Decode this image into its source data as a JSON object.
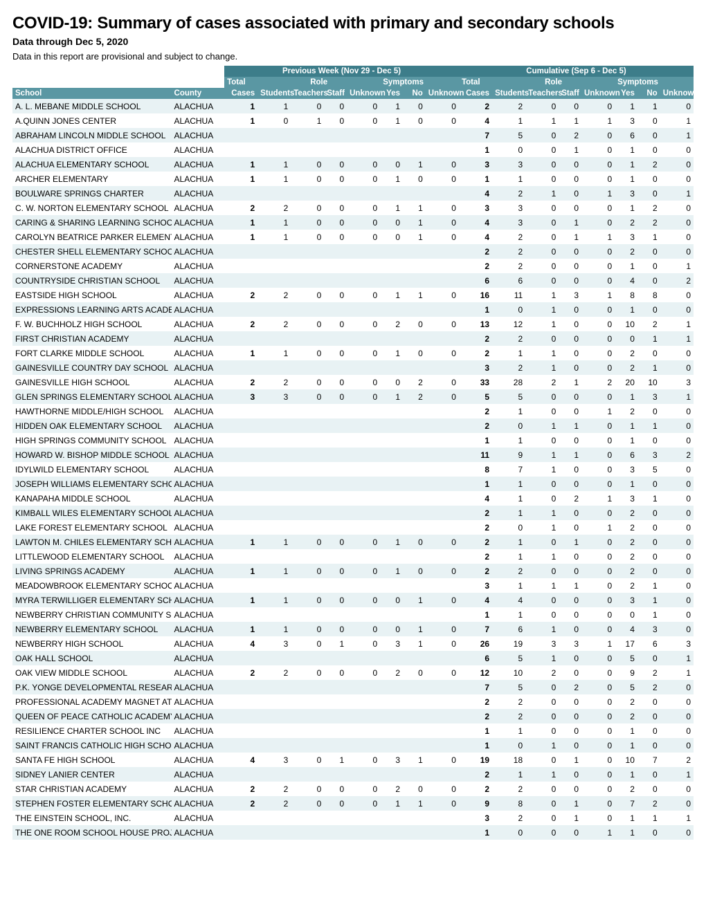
{
  "title": "COVID-19: Summary of cases associated with primary and secondary schools",
  "subtitle": "Data through Dec 5, 2020",
  "note": "Data in this report are provisional and subject to change.",
  "group_headers": {
    "prev": "Previous Week (Nov 29 - Dec 5)",
    "cum": "Cumulative (Sep 6 - Dec 5)"
  },
  "sub_headers": {
    "total": "Total",
    "role": "Role",
    "symptoms": "Symptoms"
  },
  "columns": {
    "school": "School",
    "county": "County",
    "cases": "Cases",
    "students": "Students",
    "teachers": "Teachers",
    "staff": "Staff",
    "unknown": "Unknown",
    "yes": "Yes",
    "no": "No"
  },
  "colors": {
    "header_group_bg": "#3d7d8a",
    "header_sub_bg": "#5a97a3",
    "header_fg": "#ffffff",
    "row_odd_bg": "#e8f2f4",
    "row_even_bg": "#ffffff"
  },
  "rows": [
    {
      "school": "A. L. MEBANE MIDDLE SCHOOL",
      "county": "ALACHUA",
      "p": [
        1,
        1,
        0,
        0,
        0,
        1,
        0,
        0
      ],
      "c": [
        2,
        2,
        0,
        0,
        0,
        1,
        1,
        0
      ]
    },
    {
      "school": "A.QUINN JONES CENTER",
      "county": "ALACHUA",
      "p": [
        1,
        0,
        1,
        0,
        0,
        1,
        0,
        0
      ],
      "c": [
        4,
        1,
        1,
        1,
        1,
        3,
        0,
        1
      ]
    },
    {
      "school": "ABRAHAM LINCOLN MIDDLE SCHOOL",
      "county": "ALACHUA",
      "p": null,
      "c": [
        7,
        5,
        0,
        2,
        0,
        6,
        0,
        1
      ]
    },
    {
      "school": "ALACHUA DISTRICT OFFICE",
      "county": "ALACHUA",
      "p": null,
      "c": [
        1,
        0,
        0,
        1,
        0,
        1,
        0,
        0
      ]
    },
    {
      "school": "ALACHUA ELEMENTARY SCHOOL",
      "county": "ALACHUA",
      "p": [
        1,
        1,
        0,
        0,
        0,
        0,
        1,
        0
      ],
      "c": [
        3,
        3,
        0,
        0,
        0,
        1,
        2,
        0
      ]
    },
    {
      "school": "ARCHER ELEMENTARY",
      "county": "ALACHUA",
      "p": [
        1,
        1,
        0,
        0,
        0,
        1,
        0,
        0
      ],
      "c": [
        1,
        1,
        0,
        0,
        0,
        1,
        0,
        0
      ]
    },
    {
      "school": "BOULWARE SPRINGS CHARTER",
      "county": "ALACHUA",
      "p": null,
      "c": [
        4,
        2,
        1,
        0,
        1,
        3,
        0,
        1
      ]
    },
    {
      "school": "C. W. NORTON ELEMENTARY SCHOOL",
      "county": "ALACHUA",
      "p": [
        2,
        2,
        0,
        0,
        0,
        1,
        1,
        0
      ],
      "c": [
        3,
        3,
        0,
        0,
        0,
        1,
        2,
        0
      ]
    },
    {
      "school": "CARING & SHARING LEARNING SCHOOL",
      "county": "ALACHUA",
      "p": [
        1,
        1,
        0,
        0,
        0,
        0,
        1,
        0
      ],
      "c": [
        4,
        3,
        0,
        1,
        0,
        2,
        2,
        0
      ]
    },
    {
      "school": "CAROLYN BEATRICE PARKER ELEMENTARY",
      "county": "ALACHUA",
      "p": [
        1,
        1,
        0,
        0,
        0,
        0,
        1,
        0
      ],
      "c": [
        4,
        2,
        0,
        1,
        1,
        3,
        1,
        0
      ]
    },
    {
      "school": "CHESTER SHELL ELEMENTARY SCHOOL",
      "county": "ALACHUA",
      "p": null,
      "c": [
        2,
        2,
        0,
        0,
        0,
        2,
        0,
        0
      ]
    },
    {
      "school": "CORNERSTONE ACADEMY",
      "county": "ALACHUA",
      "p": null,
      "c": [
        2,
        2,
        0,
        0,
        0,
        1,
        0,
        1
      ]
    },
    {
      "school": "COUNTRYSIDE CHRISTIAN SCHOOL",
      "county": "ALACHUA",
      "p": null,
      "c": [
        6,
        6,
        0,
        0,
        0,
        4,
        0,
        2
      ]
    },
    {
      "school": "EASTSIDE HIGH SCHOOL",
      "county": "ALACHUA",
      "p": [
        2,
        2,
        0,
        0,
        0,
        1,
        1,
        0
      ],
      "c": [
        16,
        11,
        1,
        3,
        1,
        8,
        8,
        0
      ]
    },
    {
      "school": "EXPRESSIONS LEARNING ARTS ACADEMY",
      "county": "ALACHUA",
      "p": null,
      "c": [
        1,
        0,
        1,
        0,
        0,
        1,
        0,
        0
      ]
    },
    {
      "school": "F. W. BUCHHOLZ HIGH SCHOOL",
      "county": "ALACHUA",
      "p": [
        2,
        2,
        0,
        0,
        0,
        2,
        0,
        0
      ],
      "c": [
        13,
        12,
        1,
        0,
        0,
        10,
        2,
        1
      ]
    },
    {
      "school": "FIRST CHRISTIAN ACADEMY",
      "county": "ALACHUA",
      "p": null,
      "c": [
        2,
        2,
        0,
        0,
        0,
        0,
        1,
        1
      ]
    },
    {
      "school": "FORT CLARKE MIDDLE SCHOOL",
      "county": "ALACHUA",
      "p": [
        1,
        1,
        0,
        0,
        0,
        1,
        0,
        0
      ],
      "c": [
        2,
        1,
        1,
        0,
        0,
        2,
        0,
        0
      ]
    },
    {
      "school": "GAINESVILLE COUNTRY DAY SCHOOL",
      "county": "ALACHUA",
      "p": null,
      "c": [
        3,
        2,
        1,
        0,
        0,
        2,
        1,
        0
      ]
    },
    {
      "school": "GAINESVILLE HIGH SCHOOL",
      "county": "ALACHUA",
      "p": [
        2,
        2,
        0,
        0,
        0,
        0,
        2,
        0
      ],
      "c": [
        33,
        28,
        2,
        1,
        2,
        20,
        10,
        3
      ]
    },
    {
      "school": "GLEN SPRINGS ELEMENTARY SCHOOL",
      "county": "ALACHUA",
      "p": [
        3,
        3,
        0,
        0,
        0,
        1,
        2,
        0
      ],
      "c": [
        5,
        5,
        0,
        0,
        0,
        1,
        3,
        1
      ]
    },
    {
      "school": "HAWTHORNE MIDDLE/HIGH SCHOOL",
      "county": "ALACHUA",
      "p": null,
      "c": [
        2,
        1,
        0,
        0,
        1,
        2,
        0,
        0
      ]
    },
    {
      "school": "HIDDEN OAK ELEMENTARY SCHOOL",
      "county": "ALACHUA",
      "p": null,
      "c": [
        2,
        0,
        1,
        1,
        0,
        1,
        1,
        0
      ]
    },
    {
      "school": "HIGH SPRINGS COMMUNITY SCHOOL",
      "county": "ALACHUA",
      "p": null,
      "c": [
        1,
        1,
        0,
        0,
        0,
        1,
        0,
        0
      ]
    },
    {
      "school": "HOWARD W. BISHOP MIDDLE SCHOOL",
      "county": "ALACHUA",
      "p": null,
      "c": [
        11,
        9,
        1,
        1,
        0,
        6,
        3,
        2
      ]
    },
    {
      "school": "IDYLWILD ELEMENTARY SCHOOL",
      "county": "ALACHUA",
      "p": null,
      "c": [
        8,
        7,
        1,
        0,
        0,
        3,
        5,
        0
      ]
    },
    {
      "school": "JOSEPH WILLIAMS ELEMENTARY SCHOOL",
      "county": "ALACHUA",
      "p": null,
      "c": [
        1,
        1,
        0,
        0,
        0,
        1,
        0,
        0
      ]
    },
    {
      "school": "KANAPAHA MIDDLE SCHOOL",
      "county": "ALACHUA",
      "p": null,
      "c": [
        4,
        1,
        0,
        2,
        1,
        3,
        1,
        0
      ]
    },
    {
      "school": "KIMBALL WILES ELEMENTARY SCHOOL",
      "county": "ALACHUA",
      "p": null,
      "c": [
        2,
        1,
        1,
        0,
        0,
        2,
        0,
        0
      ]
    },
    {
      "school": "LAKE FOREST ELEMENTARY SCHOOL",
      "county": "ALACHUA",
      "p": null,
      "c": [
        2,
        0,
        1,
        0,
        1,
        2,
        0,
        0
      ]
    },
    {
      "school": "LAWTON M. CHILES ELEMENTARY SCHOOL",
      "county": "ALACHUA",
      "p": [
        1,
        1,
        0,
        0,
        0,
        1,
        0,
        0
      ],
      "c": [
        2,
        1,
        0,
        1,
        0,
        2,
        0,
        0
      ]
    },
    {
      "school": "LITTLEWOOD ELEMENTARY SCHOOL",
      "county": "ALACHUA",
      "p": null,
      "c": [
        2,
        1,
        1,
        0,
        0,
        2,
        0,
        0
      ]
    },
    {
      "school": "LIVING SPRINGS ACADEMY",
      "county": "ALACHUA",
      "p": [
        1,
        1,
        0,
        0,
        0,
        1,
        0,
        0
      ],
      "c": [
        2,
        2,
        0,
        0,
        0,
        2,
        0,
        0
      ]
    },
    {
      "school": "MEADOWBROOK ELEMENTARY SCHOOL",
      "county": "ALACHUA",
      "p": null,
      "c": [
        3,
        1,
        1,
        1,
        0,
        2,
        1,
        0
      ]
    },
    {
      "school": "MYRA TERWILLIGER ELEMENTARY SCHOOL",
      "county": "ALACHUA",
      "p": [
        1,
        1,
        0,
        0,
        0,
        0,
        1,
        0
      ],
      "c": [
        4,
        4,
        0,
        0,
        0,
        3,
        1,
        0
      ]
    },
    {
      "school": "NEWBERRY CHRISTIAN COMMUNITY SCHOOL",
      "county": "ALACHUA",
      "p": null,
      "c": [
        1,
        1,
        0,
        0,
        0,
        0,
        1,
        0
      ]
    },
    {
      "school": "NEWBERRY ELEMENTARY SCHOOL",
      "county": "ALACHUA",
      "p": [
        1,
        1,
        0,
        0,
        0,
        0,
        1,
        0
      ],
      "c": [
        7,
        6,
        1,
        0,
        0,
        4,
        3,
        0
      ]
    },
    {
      "school": "NEWBERRY HIGH SCHOOL",
      "county": "ALACHUA",
      "p": [
        4,
        3,
        0,
        1,
        0,
        3,
        1,
        0
      ],
      "c": [
        26,
        19,
        3,
        3,
        1,
        17,
        6,
        3
      ]
    },
    {
      "school": "OAK HALL SCHOOL",
      "county": "ALACHUA",
      "p": null,
      "c": [
        6,
        5,
        1,
        0,
        0,
        5,
        0,
        1
      ]
    },
    {
      "school": "OAK VIEW MIDDLE SCHOOL",
      "county": "ALACHUA",
      "p": [
        2,
        2,
        0,
        0,
        0,
        2,
        0,
        0
      ],
      "c": [
        12,
        10,
        2,
        0,
        0,
        9,
        2,
        1
      ]
    },
    {
      "school": "P.K. YONGE DEVELOPMENTAL RESEARCH SCHOOL",
      "county": "ALACHUA",
      "p": null,
      "c": [
        7,
        5,
        0,
        2,
        0,
        5,
        2,
        0
      ]
    },
    {
      "school": "PROFESSIONAL ACADEMY MAGNET AT LOFTEN HIGH SCHOOL",
      "county": "ALACHUA",
      "p": null,
      "c": [
        2,
        2,
        0,
        0,
        0,
        2,
        0,
        0
      ]
    },
    {
      "school": "QUEEN OF PEACE CATHOLIC ACADEMY",
      "county": "ALACHUA",
      "p": null,
      "c": [
        2,
        2,
        0,
        0,
        0,
        2,
        0,
        0
      ]
    },
    {
      "school": "RESILIENCE CHARTER SCHOOL INC",
      "county": "ALACHUA",
      "p": null,
      "c": [
        1,
        1,
        0,
        0,
        0,
        1,
        0,
        0
      ]
    },
    {
      "school": "SAINT FRANCIS CATHOLIC HIGH SCHOOL",
      "county": "ALACHUA",
      "p": null,
      "c": [
        1,
        0,
        1,
        0,
        0,
        1,
        0,
        0
      ]
    },
    {
      "school": "SANTA FE HIGH SCHOOL",
      "county": "ALACHUA",
      "p": [
        4,
        3,
        0,
        1,
        0,
        3,
        1,
        0
      ],
      "c": [
        19,
        18,
        0,
        1,
        0,
        10,
        7,
        2
      ]
    },
    {
      "school": "SIDNEY LANIER CENTER",
      "county": "ALACHUA",
      "p": null,
      "c": [
        2,
        1,
        1,
        0,
        0,
        1,
        0,
        1
      ]
    },
    {
      "school": "STAR CHRISTIAN ACADEMY",
      "county": "ALACHUA",
      "p": [
        2,
        2,
        0,
        0,
        0,
        2,
        0,
        0
      ],
      "c": [
        2,
        2,
        0,
        0,
        0,
        2,
        0,
        0
      ]
    },
    {
      "school": "STEPHEN FOSTER ELEMENTARY SCHOOL",
      "county": "ALACHUA",
      "p": [
        2,
        2,
        0,
        0,
        0,
        1,
        1,
        0
      ],
      "c": [
        9,
        8,
        0,
        1,
        0,
        7,
        2,
        0
      ]
    },
    {
      "school": "THE EINSTEIN SCHOOL, INC.",
      "county": "ALACHUA",
      "p": null,
      "c": [
        3,
        2,
        0,
        1,
        0,
        1,
        1,
        1
      ]
    },
    {
      "school": "THE ONE ROOM SCHOOL HOUSE PROJECT",
      "county": "ALACHUA",
      "p": null,
      "c": [
        1,
        0,
        0,
        0,
        1,
        1,
        0,
        0
      ]
    }
  ]
}
